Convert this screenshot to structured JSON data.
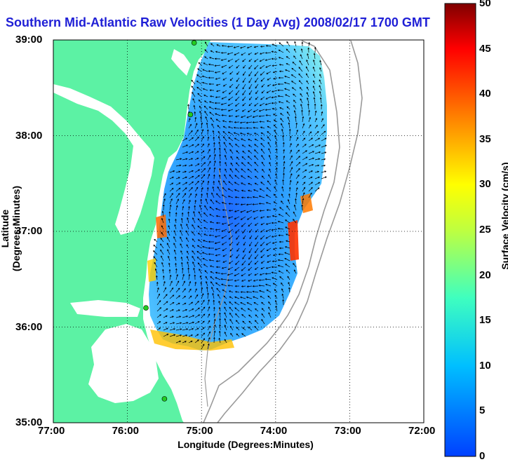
{
  "title": "Southern Mid-Atlantic Raw Velocities (1 Day Avg) 2008/02/17 1700 GMT",
  "axes": {
    "xlabel": "Longitude (Degrees:Minutes)",
    "ylabel": "Latitude (Degrees:Minutes)",
    "x_ticks": [
      "77:00",
      "76:00",
      "75:00",
      "74:00",
      "73:00",
      "72:00"
    ],
    "y_ticks": [
      "39:00",
      "38:00",
      "37:00",
      "36:00",
      "35:00"
    ],
    "lon_range": [
      -77,
      -72
    ],
    "lat_range": [
      35,
      39
    ]
  },
  "colorbar": {
    "label": "Surface Velocity (cm/s)",
    "ticks": [
      "0",
      "5",
      "10",
      "15",
      "20",
      "25",
      "30",
      "35",
      "40",
      "45",
      "50"
    ],
    "min": 0,
    "max": 50
  },
  "colors": {
    "land": "#5cf2a4",
    "title": "#1f1fd6",
    "ocean_low": "#1e6cff",
    "ocean_mid": "#2fa8ff",
    "station": "#22cc22"
  },
  "stations": [
    {
      "lon": -75.1,
      "lat": 38.97
    },
    {
      "lon": -75.15,
      "lat": 38.22
    },
    {
      "lon": -75.75,
      "lat": 36.2
    },
    {
      "lon": -75.5,
      "lat": 35.25
    }
  ]
}
